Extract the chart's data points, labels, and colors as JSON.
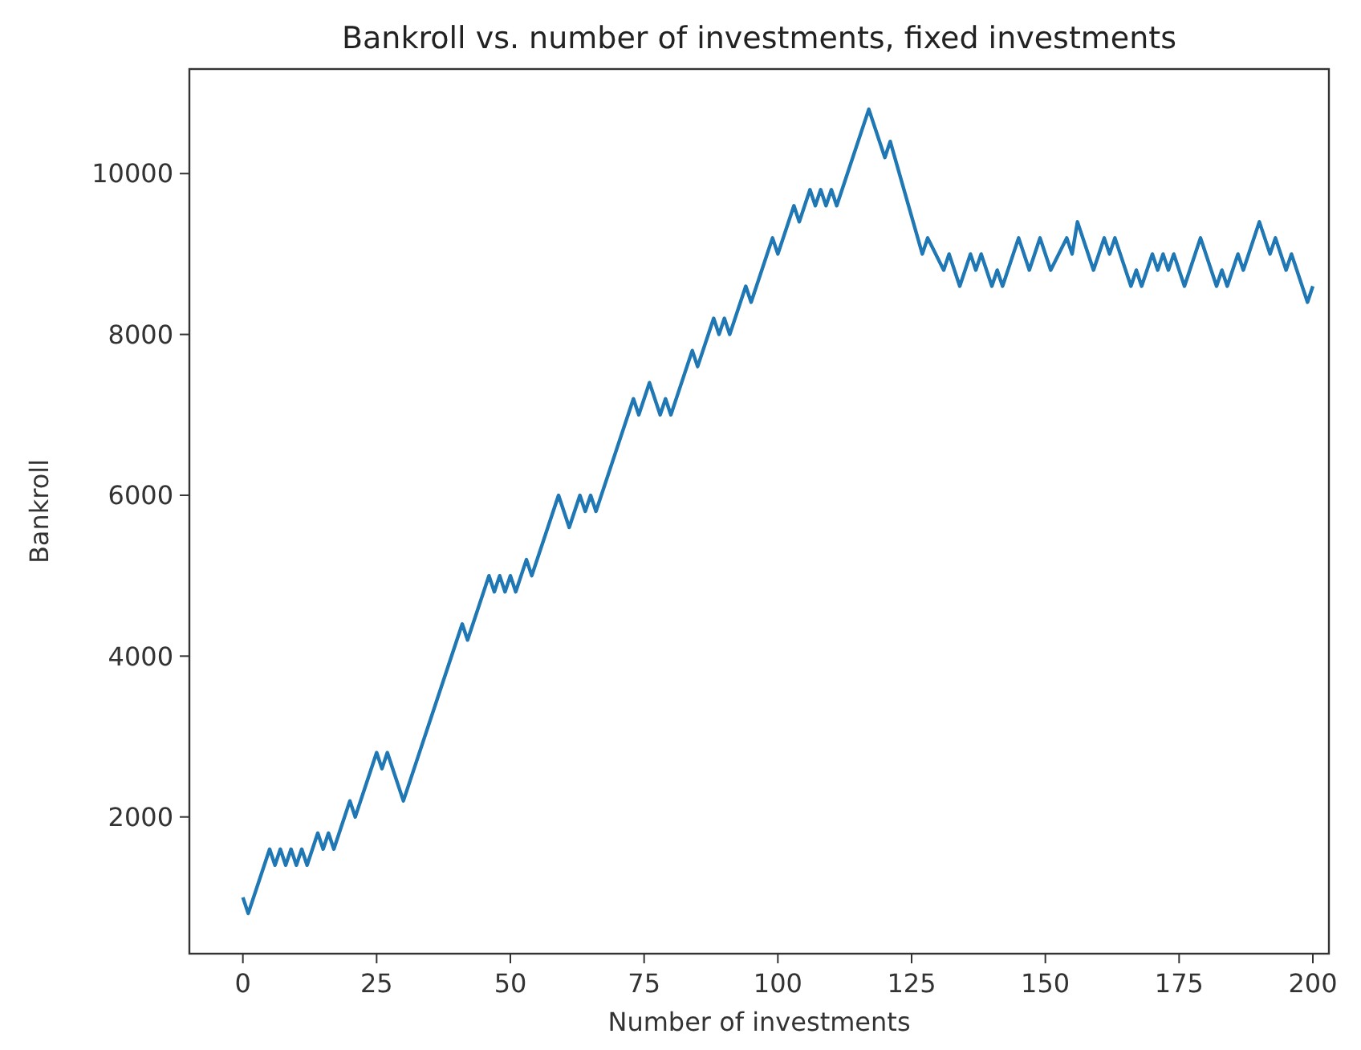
{
  "chart_data": {
    "type": "line",
    "title": "Bankroll vs. number of investments, fixed investments",
    "xlabel": "Number of investments",
    "ylabel": "Bankroll",
    "xlim": [
      -10,
      203
    ],
    "xticks": [
      0,
      25,
      50,
      75,
      100,
      125,
      150,
      175,
      200
    ],
    "ylim": [
      300,
      11300
    ],
    "yticks": [
      2000,
      4000,
      6000,
      8000,
      10000
    ],
    "series": [
      {
        "color": "#1f77b4",
        "x": [
          0,
          1,
          5,
          6,
          7,
          8,
          9,
          10,
          11,
          12,
          14,
          15,
          16,
          17,
          20,
          21,
          25,
          26,
          27,
          30,
          41,
          42,
          46,
          47,
          48,
          49,
          50,
          51,
          53,
          54,
          59,
          61,
          63,
          64,
          65,
          66,
          73,
          74,
          76,
          78,
          79,
          80,
          84,
          85,
          88,
          89,
          90,
          91,
          94,
          95,
          99,
          100,
          103,
          104,
          106,
          107,
          108,
          109,
          110,
          111,
          117,
          120,
          121,
          127,
          128,
          131,
          132,
          134,
          136,
          137,
          138,
          140,
          141,
          142,
          145,
          147,
          149,
          151,
          154,
          155,
          156,
          159,
          161,
          162,
          163,
          166,
          167,
          168,
          170,
          171,
          172,
          173,
          174,
          176,
          179,
          182,
          183,
          184,
          186,
          187,
          190,
          192,
          193,
          195,
          196,
          199,
          200
        ],
        "values": [
          1000,
          800,
          1600,
          1400,
          1600,
          1400,
          1600,
          1400,
          1600,
          1400,
          1800,
          1600,
          1800,
          1600,
          2200,
          2000,
          2800,
          2600,
          2800,
          2200,
          4400,
          4200,
          5000,
          4800,
          5000,
          4800,
          5000,
          4800,
          5200,
          5000,
          6000,
          5600,
          6000,
          5800,
          6000,
          5800,
          7200,
          7000,
          7400,
          7000,
          7200,
          7000,
          7800,
          7600,
          8200,
          8000,
          8200,
          8000,
          8600,
          8400,
          9200,
          9000,
          9600,
          9400,
          9800,
          9600,
          9800,
          9600,
          9800,
          9600,
          10800,
          10200,
          10400,
          9000,
          9200,
          8800,
          9000,
          8600,
          9000,
          8800,
          9000,
          8600,
          8800,
          8600,
          9200,
          8800,
          9200,
          8800,
          9200,
          9000,
          9400,
          8800,
          9200,
          9000,
          9200,
          8600,
          8800,
          8600,
          9000,
          8800,
          9000,
          8800,
          9000,
          8600,
          9200,
          8600,
          8800,
          8600,
          9000,
          8800,
          9400,
          9000,
          9200,
          8800,
          9000,
          8400,
          8600
        ]
      }
    ]
  }
}
